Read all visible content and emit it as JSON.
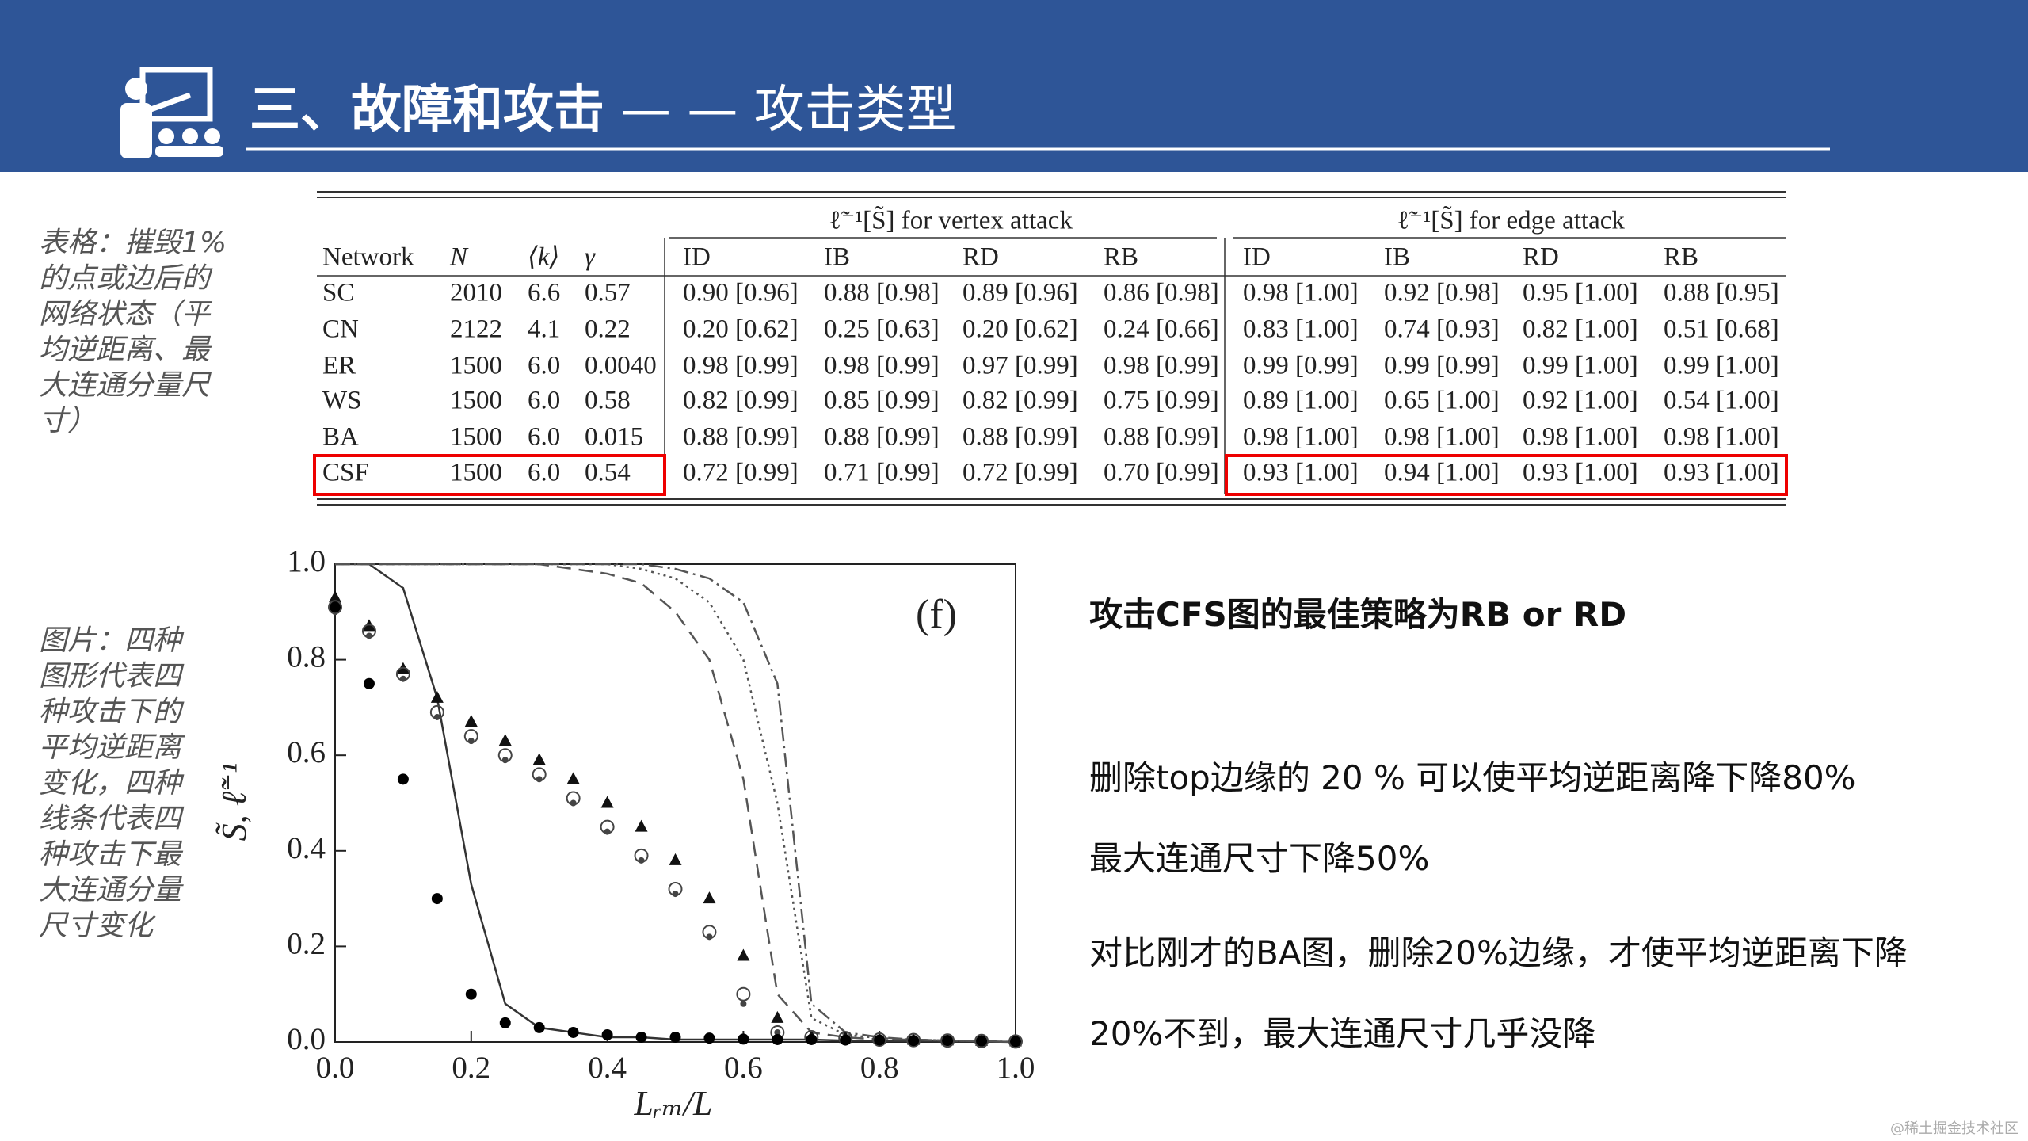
{
  "header": {
    "title_bold": "三、故障和攻击",
    "title_rest": "— — 攻击类型"
  },
  "notes": [
    "表格：摧毁1%的点或边后的网络状态（平均逆距离、最大连通分量尺寸）",
    "图片：四种图形代表四种攻击下的平均逆距离变化，四种线条代表四种攻击下最大连通分量尺寸变化"
  ],
  "table": {
    "group_headers": [
      "ℓ̃⁻¹[S̃] for vertex attack",
      "ℓ̃⁻¹[S̃] for edge attack"
    ],
    "columns": [
      "Network",
      "N",
      "⟨k⟩",
      "γ",
      "ID",
      "IB",
      "RD",
      "RB",
      "ID",
      "IB",
      "RD",
      "RB"
    ],
    "rows": [
      [
        "SC",
        "2010",
        "6.6",
        "0.57",
        "0.90 [0.96]",
        "0.88 [0.98]",
        "0.89 [0.96]",
        "0.86 [0.98]",
        "0.98 [1.00]",
        "0.92 [0.98]",
        "0.95 [1.00]",
        "0.88 [0.95]"
      ],
      [
        "CN",
        "2122",
        "4.1",
        "0.22",
        "0.20 [0.62]",
        "0.25 [0.63]",
        "0.20 [0.62]",
        "0.24 [0.66]",
        "0.83 [1.00]",
        "0.74 [0.93]",
        "0.82 [1.00]",
        "0.51 [0.68]"
      ],
      [
        "ER",
        "1500",
        "6.0",
        "0.0040",
        "0.98 [0.99]",
        "0.98 [0.99]",
        "0.97 [0.99]",
        "0.98 [0.99]",
        "0.99 [0.99]",
        "0.99 [0.99]",
        "0.99 [1.00]",
        "0.99 [1.00]"
      ],
      [
        "WS",
        "1500",
        "6.0",
        "0.58",
        "0.82 [0.99]",
        "0.85 [0.99]",
        "0.82 [0.99]",
        "0.75 [0.99]",
        "0.89 [1.00]",
        "0.65 [1.00]",
        "0.92 [1.00]",
        "0.54 [1.00]"
      ],
      [
        "BA",
        "1500",
        "6.0",
        "0.015",
        "0.88 [0.99]",
        "0.88 [0.99]",
        "0.88 [0.99]",
        "0.88 [0.99]",
        "0.98 [1.00]",
        "0.98 [1.00]",
        "0.98 [1.00]",
        "0.98 [1.00]"
      ],
      [
        "CSF",
        "1500",
        "6.0",
        "0.54",
        "0.72 [0.99]",
        "0.71 [0.99]",
        "0.72 [0.99]",
        "0.70 [0.99]",
        "0.93 [1.00]",
        "0.94 [1.00]",
        "0.93 [1.00]",
        "0.93 [1.00]"
      ]
    ]
  },
  "chart_data": {
    "type": "line",
    "annotation": "(f)",
    "xlabel": "Lᵣₘ/L",
    "ylabel": "S̃, ℓ̃⁻¹",
    "x": [
      0,
      0.05,
      0.1,
      0.15,
      0.2,
      0.25,
      0.3,
      0.35,
      0.4,
      0.45,
      0.5,
      0.55,
      0.6,
      0.65,
      0.7,
      0.75,
      0.8,
      0.85,
      0.9,
      0.95,
      1.0
    ],
    "xlim": [
      0,
      1
    ],
    "ylim": [
      0,
      1
    ],
    "xticks": [
      {
        "value": 0,
        "label": "0.0"
      },
      0.2,
      0.4,
      0.6,
      0.8,
      {
        "value": 1,
        "label": "1.0"
      }
    ],
    "yticks": [
      {
        "value": 0,
        "label": "0.0"
      },
      0.2,
      0.4,
      0.6,
      0.8,
      {
        "value": 1,
        "label": "1.0"
      }
    ],
    "series": [
      {
        "color": "#333333",
        "style": "solid",
        "values": [
          1,
          1,
          0.95,
          0.72,
          0.33,
          0.08,
          0.03,
          0.02,
          0.01,
          0.01,
          0.005,
          0.005,
          0.005,
          0.005,
          0.005,
          0.003,
          0.002,
          0.002,
          0.001,
          0.001,
          0
        ]
      },
      {
        "color": "#555555",
        "style": "dashed",
        "values": [
          1,
          1,
          1,
          1,
          1,
          1,
          1,
          0.99,
          0.98,
          0.96,
          0.9,
          0.8,
          0.55,
          0.1,
          0.02,
          0.01,
          0.005,
          0.005,
          0.003,
          0.002,
          0
        ]
      },
      {
        "color": "#555555",
        "style": "dotted",
        "values": [
          1,
          1,
          1,
          1,
          1,
          1,
          1,
          1,
          1,
          0.99,
          0.97,
          0.92,
          0.8,
          0.5,
          0.05,
          0.015,
          0.008,
          0.005,
          0.003,
          0.002,
          0
        ]
      },
      {
        "color": "#555555",
        "style": "dashdot",
        "values": [
          1,
          1,
          1,
          1,
          1,
          1,
          1,
          1,
          1,
          1,
          0.99,
          0.97,
          0.92,
          0.75,
          0.08,
          0.02,
          0.01,
          0.005,
          0.003,
          0.002,
          0
        ]
      },
      {
        "color": "#111111",
        "marker": "triangle",
        "values": [
          0.93,
          0.87,
          0.78,
          0.72,
          0.67,
          0.63,
          0.59,
          0.55,
          0.5,
          0.45,
          0.38,
          0.3,
          0.18,
          0.05,
          0.01,
          0.008,
          0.005,
          0.004,
          0.003,
          0.002,
          0.001
        ]
      },
      {
        "color": "#444444",
        "marker": "circle-open",
        "values": [
          0.91,
          0.86,
          0.77,
          0.69,
          0.64,
          0.6,
          0.56,
          0.51,
          0.45,
          0.39,
          0.32,
          0.23,
          0.1,
          0.02,
          0.01,
          0.008,
          0.005,
          0.004,
          0.003,
          0.002,
          0.001
        ]
      },
      {
        "color": "#444444",
        "marker": "circle-dot",
        "values": [
          0.9,
          0.85,
          0.76,
          0.68,
          0.63,
          0.59,
          0.55,
          0.5,
          0.44,
          0.38,
          0.31,
          0.22,
          0.08,
          0.02,
          0.01,
          0.008,
          0.005,
          0.004,
          0.003,
          0.002,
          0.001
        ]
      },
      {
        "color": "#000000",
        "marker": "circle-filled",
        "values": [
          0.91,
          0.75,
          0.55,
          0.3,
          0.1,
          0.04,
          0.03,
          0.02,
          0.015,
          0.01,
          0.01,
          0.008,
          0.006,
          0.005,
          0.005,
          0.004,
          0.004,
          0.003,
          0.003,
          0.002,
          0.001
        ]
      }
    ]
  },
  "body": {
    "key_point": "攻击CFS图的最佳策略为RB or RD",
    "lines": [
      "删除top边缘的 20 % 可以使平均逆距离降下降80%",
      "最大连通尺寸下降50%",
      "对比刚才的BA图，删除20%边缘，才使平均逆距离下降20%不到，最大连通尺寸几乎没降"
    ]
  },
  "footer": "@稀土掘金技术社区"
}
